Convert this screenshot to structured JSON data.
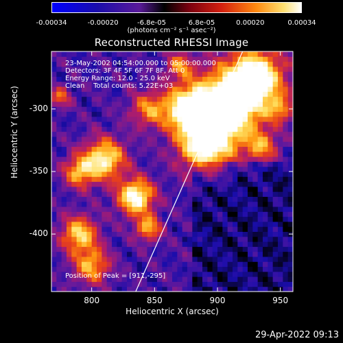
{
  "colorbar": {
    "ticks": [
      "-0.00034",
      "-0.00020",
      "-6.8e-05",
      "6.8e-05",
      "0.00020",
      "0.00034"
    ],
    "tick_values": [
      -0.00034,
      -0.0002,
      -6.8e-05,
      6.8e-05,
      0.0002,
      0.00034
    ],
    "units": "(photons cm⁻² s⁻¹ asec⁻²)",
    "range": [
      -0.00034,
      0.00034
    ]
  },
  "chart_data": {
    "type": "heatmap",
    "title": "Reconstructed RHESSI Image",
    "xlabel": "Heliocentric X (arcsec)",
    "ylabel": "Heliocentric Y (arcsec)",
    "xlim": [
      768,
      960
    ],
    "ylim": [
      -446,
      -254
    ],
    "xticks": [
      "800",
      "850",
      "900",
      "950"
    ],
    "xtick_values": [
      800,
      850,
      900,
      950
    ],
    "yticks": [
      "-300",
      "-350",
      "-400"
    ],
    "ytick_values": [
      -300,
      -350,
      -400
    ],
    "annotations": {
      "line1": "23-May-2002 04:54:00.000 to 05:00:00.000",
      "line2": "Detectors: 3F 4F 5F 6F 7F 8F, Att 0",
      "line3": "Energy Range: 12.0 - 25.0 keV",
      "line4": "Clean    Total counts: 5.22E+03",
      "peak": "Position of Peak = [911,-295]"
    },
    "peak": [
      911,
      -295
    ],
    "limb_line": [
      [
        835,
        -446
      ],
      [
        920,
        -254
      ]
    ],
    "colormap": [
      "#000000",
      "#1a0dab",
      "#6a1a9a",
      "#b01c6a",
      "#e8401a",
      "#ff9a10",
      "#ffe060",
      "#ffffff"
    ]
  },
  "timestamp": "29-Apr-2022 09:13"
}
